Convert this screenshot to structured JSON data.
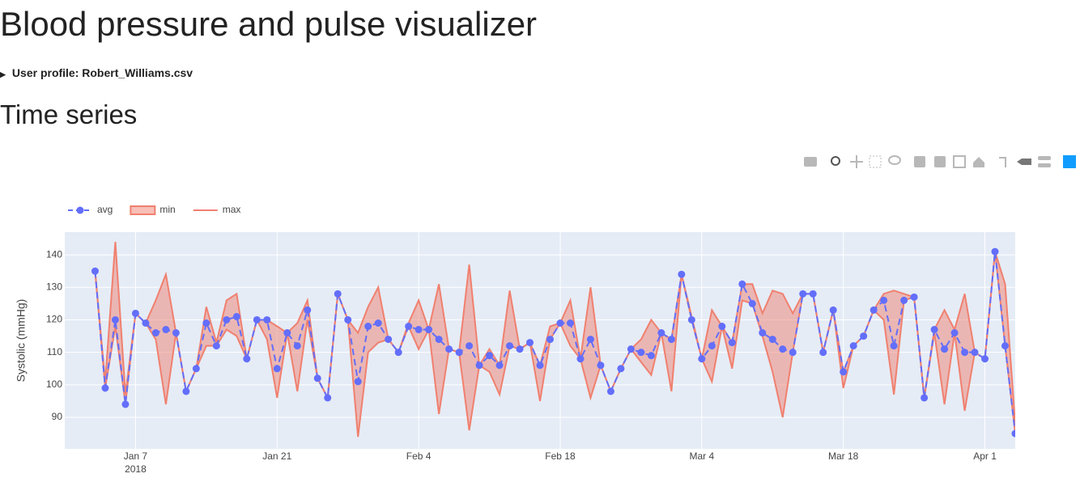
{
  "header": {
    "title": "Blood pressure and pulse visualizer"
  },
  "profile": {
    "summary": "User profile: Robert_Williams.csv"
  },
  "section": {
    "title": "Time series"
  },
  "chart_data": {
    "type": "line",
    "y_label": "Systolic (mmHg)",
    "legend": "top-left",
    "grid": true,
    "background": "#e5ecf6",
    "x": [
      "2018-01-03",
      "2018-01-04",
      "2018-01-05",
      "2018-01-06",
      "2018-01-07",
      "2018-01-08",
      "2018-01-09",
      "2018-01-10",
      "2018-01-11",
      "2018-01-12",
      "2018-01-13",
      "2018-01-14",
      "2018-01-15",
      "2018-01-16",
      "2018-01-17",
      "2018-01-18",
      "2018-01-19",
      "2018-01-20",
      "2018-01-21",
      "2018-01-22",
      "2018-01-23",
      "2018-01-24",
      "2018-01-25",
      "2018-01-26",
      "2018-01-27",
      "2018-01-28",
      "2018-01-29",
      "2018-01-30",
      "2018-01-31",
      "2018-02-01",
      "2018-02-02",
      "2018-02-03",
      "2018-02-04",
      "2018-02-05",
      "2018-02-06",
      "2018-02-07",
      "2018-02-08",
      "2018-02-09",
      "2018-02-10",
      "2018-02-11",
      "2018-02-12",
      "2018-02-13",
      "2018-02-14",
      "2018-02-15",
      "2018-02-16",
      "2018-02-17",
      "2018-02-18",
      "2018-02-19",
      "2018-02-20",
      "2018-02-21",
      "2018-02-22",
      "2018-02-23",
      "2018-02-24",
      "2018-02-25",
      "2018-02-26",
      "2018-02-27",
      "2018-02-28",
      "2018-03-01",
      "2018-03-02",
      "2018-03-03",
      "2018-03-04",
      "2018-03-05",
      "2018-03-06",
      "2018-03-07",
      "2018-03-08",
      "2018-03-09",
      "2018-03-10",
      "2018-03-11",
      "2018-03-12",
      "2018-03-13",
      "2018-03-14",
      "2018-03-15",
      "2018-03-16",
      "2018-03-17",
      "2018-03-18",
      "2018-03-19",
      "2018-03-20",
      "2018-03-21",
      "2018-03-22",
      "2018-03-23",
      "2018-03-24",
      "2018-03-25",
      "2018-03-26",
      "2018-03-27",
      "2018-03-28",
      "2018-03-29",
      "2018-03-30",
      "2018-03-31",
      "2018-04-01",
      "2018-04-02",
      "2018-04-03",
      "2018-04-04"
    ],
    "series": [
      {
        "name": "avg",
        "color": "#636efa",
        "dash": "dash",
        "markers": true,
        "values": [
          135,
          99,
          120,
          94,
          122,
          119,
          116,
          117,
          116,
          98,
          105,
          119,
          112,
          120,
          121,
          108,
          120,
          120,
          105,
          116,
          112,
          123,
          102,
          96,
          128,
          120,
          101,
          118,
          119,
          114,
          110,
          118,
          117,
          117,
          114,
          111,
          110,
          112,
          106,
          109,
          106,
          112,
          111,
          113,
          106,
          114,
          119,
          119,
          108,
          114,
          106,
          98,
          105,
          111,
          110,
          109,
          116,
          114,
          134,
          120,
          108,
          112,
          118,
          113,
          131,
          125,
          116,
          114,
          111,
          110,
          128,
          128,
          110,
          123,
          104,
          112,
          115,
          123,
          126,
          112,
          126,
          127,
          96,
          117,
          111,
          116,
          110,
          110,
          108,
          141,
          112,
          85
        ]
      },
      {
        "name": "min",
        "color": "#f0806f",
        "fill": "tonexty",
        "values": [
          135,
          99,
          118,
          94,
          122,
          119,
          114,
          94,
          116,
          98,
          105,
          112,
          112,
          117,
          115,
          108,
          120,
          114,
          96,
          116,
          98,
          120,
          102,
          96,
          128,
          120,
          84,
          110,
          113,
          114,
          110,
          118,
          111,
          117,
          91,
          111,
          110,
          86,
          106,
          104,
          97,
          112,
          111,
          113,
          95,
          114,
          119,
          112,
          108,
          96,
          106,
          98,
          105,
          111,
          107,
          103,
          116,
          98,
          134,
          120,
          108,
          101,
          118,
          105,
          126,
          125,
          115,
          104,
          90,
          110,
          128,
          128,
          110,
          123,
          99,
          112,
          115,
          123,
          120,
          97,
          126,
          127,
          96,
          116,
          94,
          116,
          92,
          110,
          108,
          141,
          112,
          85
        ]
      },
      {
        "name": "max",
        "color": "#f0806f",
        "values": [
          135,
          101,
          144,
          97,
          122,
          119,
          126,
          134,
          116,
          98,
          105,
          124,
          113,
          126,
          128,
          108,
          120,
          120,
          118,
          116,
          119,
          126,
          102,
          96,
          128,
          120,
          116,
          124,
          130,
          114,
          110,
          119,
          126,
          117,
          131,
          111,
          110,
          137,
          106,
          111,
          106,
          129,
          111,
          113,
          106,
          118,
          119,
          126,
          108,
          130,
          106,
          98,
          105,
          111,
          114,
          120,
          116,
          114,
          134,
          121,
          108,
          123,
          118,
          113,
          131,
          131,
          122,
          129,
          128,
          122,
          128,
          128,
          110,
          123,
          104,
          112,
          115,
          123,
          128,
          129,
          128,
          127,
          96,
          117,
          123,
          117,
          128,
          110,
          108,
          141,
          131,
          88
        ]
      }
    ],
    "xlim": [
      "2017-12-31",
      "2018-04-04"
    ],
    "xticks": [
      {
        "value": "2018-01-07",
        "label": "Jan 7"
      },
      {
        "value": "2018-01-21",
        "label": "Jan 21"
      },
      {
        "value": "2018-02-04",
        "label": "Feb 4"
      },
      {
        "value": "2018-02-18",
        "label": "Feb 18"
      },
      {
        "value": "2018-03-04",
        "label": "Mar 4"
      },
      {
        "value": "2018-03-18",
        "label": "Mar 18"
      },
      {
        "value": "2018-04-01",
        "label": "Apr 1"
      }
    ],
    "xtick_year": "2018",
    "ylim": [
      80.3,
      147
    ],
    "yticks": [
      90,
      100,
      110,
      120,
      130,
      140
    ]
  }
}
